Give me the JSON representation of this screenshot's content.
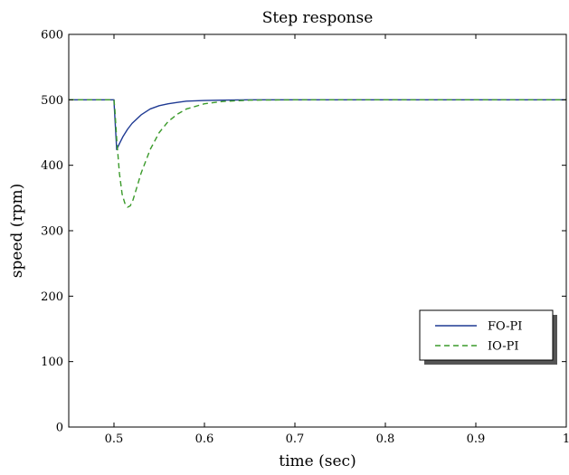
{
  "chart_data": {
    "type": "line",
    "title": "Step response",
    "xlabel": "time (sec)",
    "ylabel": "speed (rpm)",
    "xlim": [
      0.45,
      1.0
    ],
    "ylim": [
      0,
      600
    ],
    "xticks": [
      0.5,
      0.6,
      0.7,
      0.8,
      0.9,
      1
    ],
    "xtick_labels": [
      "0.5",
      "0.6",
      "0.7",
      "0.8",
      "0.9",
      "1"
    ],
    "yticks": [
      0,
      100,
      200,
      300,
      400,
      500,
      600
    ],
    "ytick_labels": [
      "0",
      "100",
      "200",
      "300",
      "400",
      "500",
      "600"
    ],
    "grid": false,
    "legend_position": "lower-right",
    "series": [
      {
        "name": "FO-PI",
        "color": "#1f3a93",
        "style": "solid",
        "x": [
          0.45,
          0.5,
          0.5,
          0.503,
          0.506,
          0.51,
          0.515,
          0.52,
          0.53,
          0.54,
          0.55,
          0.56,
          0.57,
          0.58,
          0.6,
          0.62,
          0.65,
          0.7,
          1.0
        ],
        "y": [
          500,
          500,
          498,
          424,
          433,
          444,
          455,
          464,
          477,
          486,
          491,
          494,
          496,
          498,
          499,
          499.5,
          500,
          500,
          500
        ]
      },
      {
        "name": "IO-PI",
        "color": "#3a9a2a",
        "style": "dashed",
        "x": [
          0.45,
          0.5,
          0.501,
          0.503,
          0.506,
          0.509,
          0.512,
          0.515,
          0.518,
          0.521,
          0.525,
          0.53,
          0.54,
          0.55,
          0.56,
          0.57,
          0.58,
          0.6,
          0.62,
          0.65,
          0.7,
          1.0
        ],
        "y": [
          500,
          500,
          485,
          440,
          388,
          356,
          342,
          336,
          338,
          347,
          365,
          388,
          424,
          450,
          467,
          478,
          486,
          494,
          497.5,
          499.5,
          500,
          500
        ]
      }
    ]
  }
}
